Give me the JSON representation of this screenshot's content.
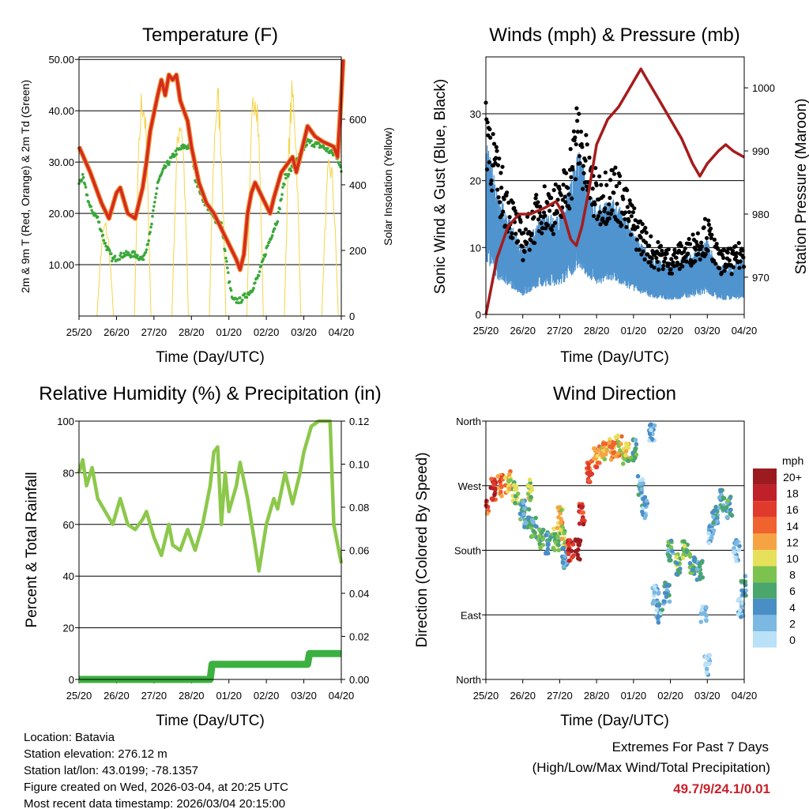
{
  "chart_data": [
    {
      "type": "line",
      "title": "Temperature (F)",
      "xlabel": "Time (Day/UTC)",
      "ylabel": "2m & 9m T (Red, Orange) & 2m Td (Green)",
      "ylabel_right": "Solar Insolation (Yellow)",
      "x_ticks": [
        "25/20",
        "26/20",
        "27/20",
        "28/20",
        "01/20",
        "02/20",
        "03/20",
        "04/20"
      ],
      "xlim": [
        0,
        7
      ],
      "ylim": [
        0,
        50.5
      ],
      "y_ticks": [
        10,
        20,
        30,
        40,
        50
      ],
      "y_tick_labels": [
        "10.00",
        "20.00",
        "30.00",
        "40.00",
        "50.00"
      ],
      "ylim_right": [
        0,
        790
      ],
      "y_ticks_right": [
        0,
        200,
        400,
        600
      ],
      "series": [
        {
          "name": "2m T",
          "color": "#d42a20",
          "points": [
            [
              0,
              33
            ],
            [
              0.3,
              28
            ],
            [
              0.6,
              22
            ],
            [
              0.8,
              19
            ],
            [
              1.0,
              24
            ],
            [
              1.1,
              25
            ],
            [
              1.3,
              20
            ],
            [
              1.5,
              19
            ],
            [
              1.7,
              25
            ],
            [
              1.8,
              30
            ],
            [
              1.9,
              36
            ],
            [
              2.1,
              43
            ],
            [
              2.2,
              46
            ],
            [
              2.3,
              43
            ],
            [
              2.4,
              47
            ],
            [
              2.5,
              46
            ],
            [
              2.6,
              47
            ],
            [
              2.7,
              42
            ],
            [
              2.9,
              38
            ],
            [
              3.0,
              33
            ],
            [
              3.2,
              26
            ],
            [
              3.4,
              22
            ],
            [
              3.6,
              20
            ],
            [
              3.8,
              17
            ],
            [
              4.0,
              14
            ],
            [
              4.2,
              11
            ],
            [
              4.3,
              9
            ],
            [
              4.4,
              12
            ],
            [
              4.5,
              20
            ],
            [
              4.6,
              24
            ],
            [
              4.7,
              26
            ],
            [
              4.9,
              23
            ],
            [
              5.1,
              20
            ],
            [
              5.2,
              23
            ],
            [
              5.4,
              28
            ],
            [
              5.6,
              30
            ],
            [
              5.7,
              31
            ],
            [
              5.8,
              28
            ],
            [
              6.0,
              34
            ],
            [
              6.1,
              37
            ],
            [
              6.3,
              35
            ],
            [
              6.5,
              34
            ],
            [
              6.8,
              33
            ],
            [
              6.9,
              31
            ],
            [
              7.0,
              43
            ],
            [
              7.05,
              50
            ]
          ]
        },
        {
          "name": "2m Td",
          "color": "#3aa83a",
          "points": [
            [
              0,
              26
            ],
            [
              0.1,
              27
            ],
            [
              0.3,
              21
            ],
            [
              0.5,
              19
            ],
            [
              0.7,
              14
            ],
            [
              0.9,
              11
            ],
            [
              1.2,
              12
            ],
            [
              1.5,
              12
            ],
            [
              1.7,
              11
            ],
            [
              1.9,
              16
            ],
            [
              2.1,
              26
            ],
            [
              2.3,
              29
            ],
            [
              2.6,
              32
            ],
            [
              2.8,
              33
            ],
            [
              3.0,
              33
            ],
            [
              3.1,
              27
            ],
            [
              3.3,
              23
            ],
            [
              3.6,
              19
            ],
            [
              3.8,
              18
            ],
            [
              4.0,
              7
            ],
            [
              4.1,
              3
            ],
            [
              4.3,
              3
            ],
            [
              4.6,
              5
            ],
            [
              4.8,
              8
            ],
            [
              5.0,
              13
            ],
            [
              5.3,
              19
            ],
            [
              5.5,
              27
            ],
            [
              5.8,
              30
            ],
            [
              6.1,
              34
            ],
            [
              6.5,
              33
            ],
            [
              6.9,
              31
            ],
            [
              7.0,
              28
            ]
          ]
        },
        {
          "name": "Solar Insolation",
          "color": "#f5d447",
          "daily_peaks": [
            300,
            730,
            660,
            720,
            770,
            730,
            500,
            600
          ]
        }
      ]
    },
    {
      "type": "scatter",
      "title": "Winds (mph) & Pressure (mb)",
      "xlabel": "Time (Day/UTC)",
      "ylabel": "Sonic Wind & Gust (Blue, Black)",
      "ylabel_right": "Station Pressure (Maroon)",
      "x_ticks": [
        "25/20",
        "26/20",
        "27/20",
        "28/20",
        "01/20",
        "02/20",
        "03/20",
        "04/20"
      ],
      "xlim": [
        0,
        7
      ],
      "ylim": [
        0,
        38.5
      ],
      "y_ticks": [
        0,
        10,
        20,
        30
      ],
      "ylim_right": [
        964.1,
        1004.9
      ],
      "y_ticks_right": [
        970,
        980,
        990,
        1000
      ],
      "series": [
        {
          "name": "Sonic Wind",
          "color": "#4f93cf",
          "points": [
            [
              0,
              22
            ],
            [
              0.3,
              15
            ],
            [
              0.6,
              12
            ],
            [
              1,
              8
            ],
            [
              1.5,
              12
            ],
            [
              2,
              12
            ],
            [
              2.3,
              16
            ],
            [
              2.5,
              20
            ],
            [
              2.8,
              15
            ],
            [
              3,
              13
            ],
            [
              3.5,
              14
            ],
            [
              4,
              10
            ],
            [
              4.5,
              7
            ],
            [
              5,
              6
            ],
            [
              5.5,
              7
            ],
            [
              6,
              9
            ],
            [
              6.3,
              6
            ],
            [
              6.7,
              6
            ],
            [
              7,
              7
            ]
          ]
        },
        {
          "name": "Gust",
          "color": "#000000",
          "factor": 1.45
        },
        {
          "name": "Station Pressure",
          "color": "#a61c1c",
          "points": [
            [
              0,
              964
            ],
            [
              0.3,
              973
            ],
            [
              0.6,
              978
            ],
            [
              0.9,
              980
            ],
            [
              1.2,
              980
            ],
            [
              1.6,
              981
            ],
            [
              1.9,
              982
            ],
            [
              2.1,
              980
            ],
            [
              2.3,
              976
            ],
            [
              2.45,
              975
            ],
            [
              2.6,
              978
            ],
            [
              2.8,
              984
            ],
            [
              3.0,
              991
            ],
            [
              3.3,
              995
            ],
            [
              3.6,
              997
            ],
            [
              3.9,
              1000
            ],
            [
              4.2,
              1003
            ],
            [
              4.4,
              1001
            ],
            [
              4.7,
              998
            ],
            [
              5.0,
              995
            ],
            [
              5.3,
              992
            ],
            [
              5.6,
              988
            ],
            [
              5.8,
              986
            ],
            [
              6.0,
              988
            ],
            [
              6.3,
              990
            ],
            [
              6.5,
              991
            ],
            [
              6.7,
              990
            ],
            [
              7.0,
              989
            ]
          ]
        }
      ]
    },
    {
      "type": "line",
      "title": "Relative Humidity (%) & Precipitation (in)",
      "xlabel": "Time (Day/UTC)",
      "ylabel": "Percent & Total Rainfall",
      "x_ticks": [
        "25/20",
        "26/20",
        "27/20",
        "28/20",
        "01/20",
        "02/20",
        "03/20",
        "04/20"
      ],
      "xlim": [
        0,
        7
      ],
      "ylim": [
        0,
        100
      ],
      "y_ticks": [
        0,
        20,
        40,
        60,
        80,
        100
      ],
      "ylim_right": [
        0,
        0.12
      ],
      "y_ticks_right": [
        0,
        0.02,
        0.04,
        0.06,
        0.08,
        0.1,
        0.12
      ],
      "y_tick_labels_right": [
        "0.00",
        "0.02",
        "0.04",
        "0.06",
        "0.08",
        "0.10",
        "0.12"
      ],
      "series": [
        {
          "name": "Relative Humidity",
          "color": "#8cc84b",
          "points": [
            [
              0,
              80
            ],
            [
              0.1,
              85
            ],
            [
              0.2,
              75
            ],
            [
              0.35,
              82
            ],
            [
              0.5,
              70
            ],
            [
              0.7,
              65
            ],
            [
              0.9,
              60
            ],
            [
              1.1,
              70
            ],
            [
              1.3,
              60
            ],
            [
              1.5,
              58
            ],
            [
              1.7,
              62
            ],
            [
              1.8,
              65
            ],
            [
              2.0,
              55
            ],
            [
              2.2,
              48
            ],
            [
              2.4,
              60
            ],
            [
              2.5,
              52
            ],
            [
              2.7,
              50
            ],
            [
              2.9,
              58
            ],
            [
              3.1,
              50
            ],
            [
              3.3,
              60
            ],
            [
              3.5,
              75
            ],
            [
              3.6,
              88
            ],
            [
              3.7,
              90
            ],
            [
              3.8,
              60
            ],
            [
              3.9,
              80
            ],
            [
              4.0,
              65
            ],
            [
              4.2,
              75
            ],
            [
              4.3,
              84
            ],
            [
              4.5,
              70
            ],
            [
              4.7,
              52
            ],
            [
              4.8,
              42
            ],
            [
              5.0,
              60
            ],
            [
              5.2,
              70
            ],
            [
              5.3,
              66
            ],
            [
              5.5,
              80
            ],
            [
              5.7,
              68
            ],
            [
              5.9,
              80
            ],
            [
              6.0,
              88
            ],
            [
              6.2,
              98
            ],
            [
              6.4,
              100
            ],
            [
              6.7,
              100
            ],
            [
              6.8,
              60
            ],
            [
              7.0,
              45
            ]
          ]
        },
        {
          "name": "Total Precipitation",
          "color": "#3cb040",
          "points": [
            [
              0,
              0
            ],
            [
              3.5,
              0
            ],
            [
              3.55,
              0.007
            ],
            [
              6.1,
              0.007
            ],
            [
              6.15,
              0.012
            ],
            [
              7.0,
              0.012
            ]
          ]
        }
      ]
    },
    {
      "type": "scatter",
      "title": "Wind Direction",
      "xlabel": "Time (Day/UTC)",
      "ylabel": "Direction (Colored By Speed)",
      "x_ticks": [
        "25/20",
        "26/20",
        "27/20",
        "28/20",
        "01/20",
        "02/20",
        "03/20",
        "04/20"
      ],
      "xlim": [
        0,
        7
      ],
      "ylim": [
        0,
        360
      ],
      "y_ticks": [
        0,
        90,
        180,
        270,
        360
      ],
      "y_tick_labels": [
        "North",
        "East",
        "South",
        "West",
        "North"
      ],
      "legend": {
        "title": "mph",
        "labels": [
          "20+",
          "18",
          "16",
          "14",
          "12",
          "10",
          "8",
          "6",
          "4",
          "2",
          "0"
        ],
        "colors": [
          "#9b1b1e",
          "#c0202a",
          "#e03a2c",
          "#f0622e",
          "#f6a443",
          "#e7e05a",
          "#7cc24e",
          "#4aa66b",
          "#4a8ec6",
          "#7bb8e2",
          "#b9e1f7"
        ],
        "placement": "right"
      },
      "points": [
        [
          0,
          240,
          16
        ],
        [
          0.2,
          265,
          18
        ],
        [
          0.4,
          270,
          14
        ],
        [
          0.6,
          275,
          12
        ],
        [
          0.8,
          260,
          9
        ],
        [
          1.0,
          235,
          6
        ],
        [
          1.1,
          225,
          5
        ],
        [
          1.2,
          265,
          10
        ],
        [
          1.3,
          210,
          6
        ],
        [
          1.5,
          195,
          8
        ],
        [
          1.7,
          190,
          6
        ],
        [
          1.9,
          195,
          8
        ],
        [
          2.0,
          225,
          12
        ],
        [
          2.1,
          200,
          10
        ],
        [
          2.15,
          170,
          5
        ],
        [
          2.3,
          180,
          18
        ],
        [
          2.5,
          182,
          20
        ],
        [
          2.6,
          230,
          18
        ],
        [
          2.8,
          290,
          16
        ],
        [
          3.0,
          310,
          14
        ],
        [
          3.2,
          320,
          12
        ],
        [
          3.4,
          320,
          14
        ],
        [
          3.6,
          325,
          12
        ],
        [
          3.8,
          315,
          10
        ],
        [
          4.0,
          320,
          6
        ],
        [
          4.2,
          270,
          4
        ],
        [
          4.3,
          240,
          4
        ],
        [
          4.5,
          345,
          3
        ],
        [
          4.6,
          120,
          3
        ],
        [
          4.7,
          90,
          4
        ],
        [
          4.9,
          120,
          5
        ],
        [
          5.0,
          180,
          6
        ],
        [
          5.2,
          160,
          8
        ],
        [
          5.4,
          180,
          8
        ],
        [
          5.6,
          160,
          7
        ],
        [
          5.8,
          150,
          5
        ],
        [
          5.9,
          90,
          3
        ],
        [
          6.0,
          20,
          2
        ],
        [
          6.1,
          200,
          3
        ],
        [
          6.2,
          230,
          5
        ],
        [
          6.4,
          250,
          5
        ],
        [
          6.6,
          240,
          6
        ],
        [
          6.8,
          180,
          3
        ],
        [
          6.9,
          100,
          3
        ],
        [
          7.0,
          130,
          5
        ]
      ]
    }
  ],
  "info": {
    "location": "Location: Batavia",
    "elevation": "Station elevation: 276.12 m",
    "latlon": "Station lat/lon: 43.0199; -78.1357",
    "created": "Figure created on Wed, 2026-03-04, at 20:25 UTC",
    "recent": "Most recent data timestamp: 2026/03/04 20:15:00"
  },
  "extremes": {
    "title": "Extremes For Past 7 Days",
    "subtitle": "(High/Low/Max Wind/Total Precipitation)",
    "values": "49.7/9/24.1/0.01"
  }
}
